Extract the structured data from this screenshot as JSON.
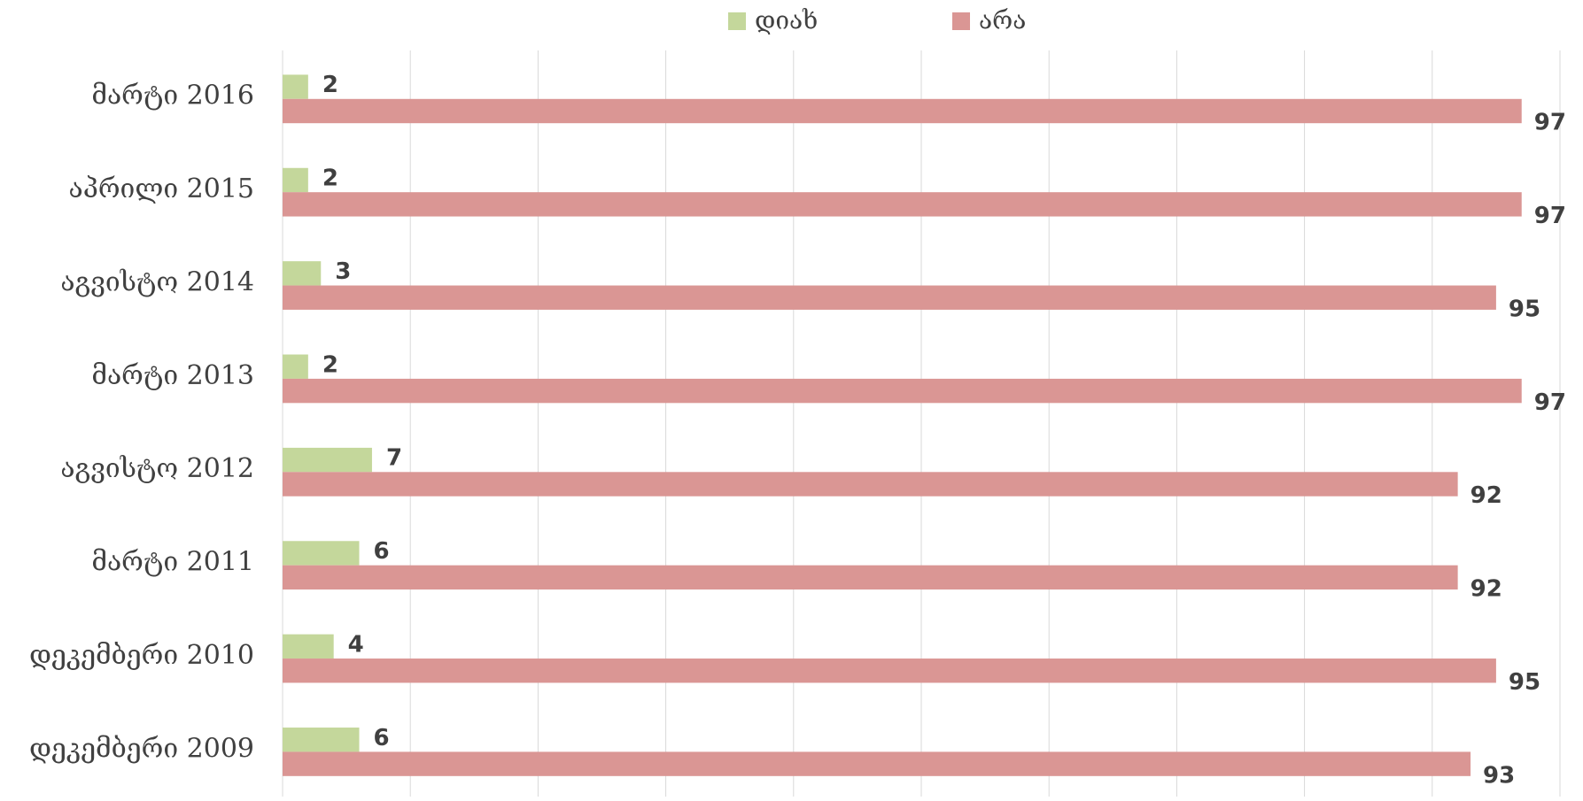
{
  "chart_data": {
    "type": "bar",
    "orientation": "horizontal",
    "categories": [
      "მარტი 2016",
      "აპრილი 2015",
      "აგვისტო 2014",
      "მარტი 2013",
      "აგვისტო 2012",
      "მარტი 2011",
      "დეკემბერი 2010",
      "დეკემბერი 2009"
    ],
    "series": [
      {
        "name": "დიახ",
        "color": "#c4d79b",
        "values": [
          2,
          2,
          3,
          2,
          7,
          6,
          4,
          6
        ]
      },
      {
        "name": "არა",
        "color": "#da9694",
        "values": [
          97,
          97,
          95,
          97,
          92,
          92,
          95,
          93
        ]
      }
    ],
    "xlim": [
      0,
      100
    ],
    "xticks": [
      0,
      10,
      20,
      30,
      40,
      50,
      60,
      70,
      80,
      90,
      100
    ],
    "grid": true,
    "legend": "top"
  }
}
